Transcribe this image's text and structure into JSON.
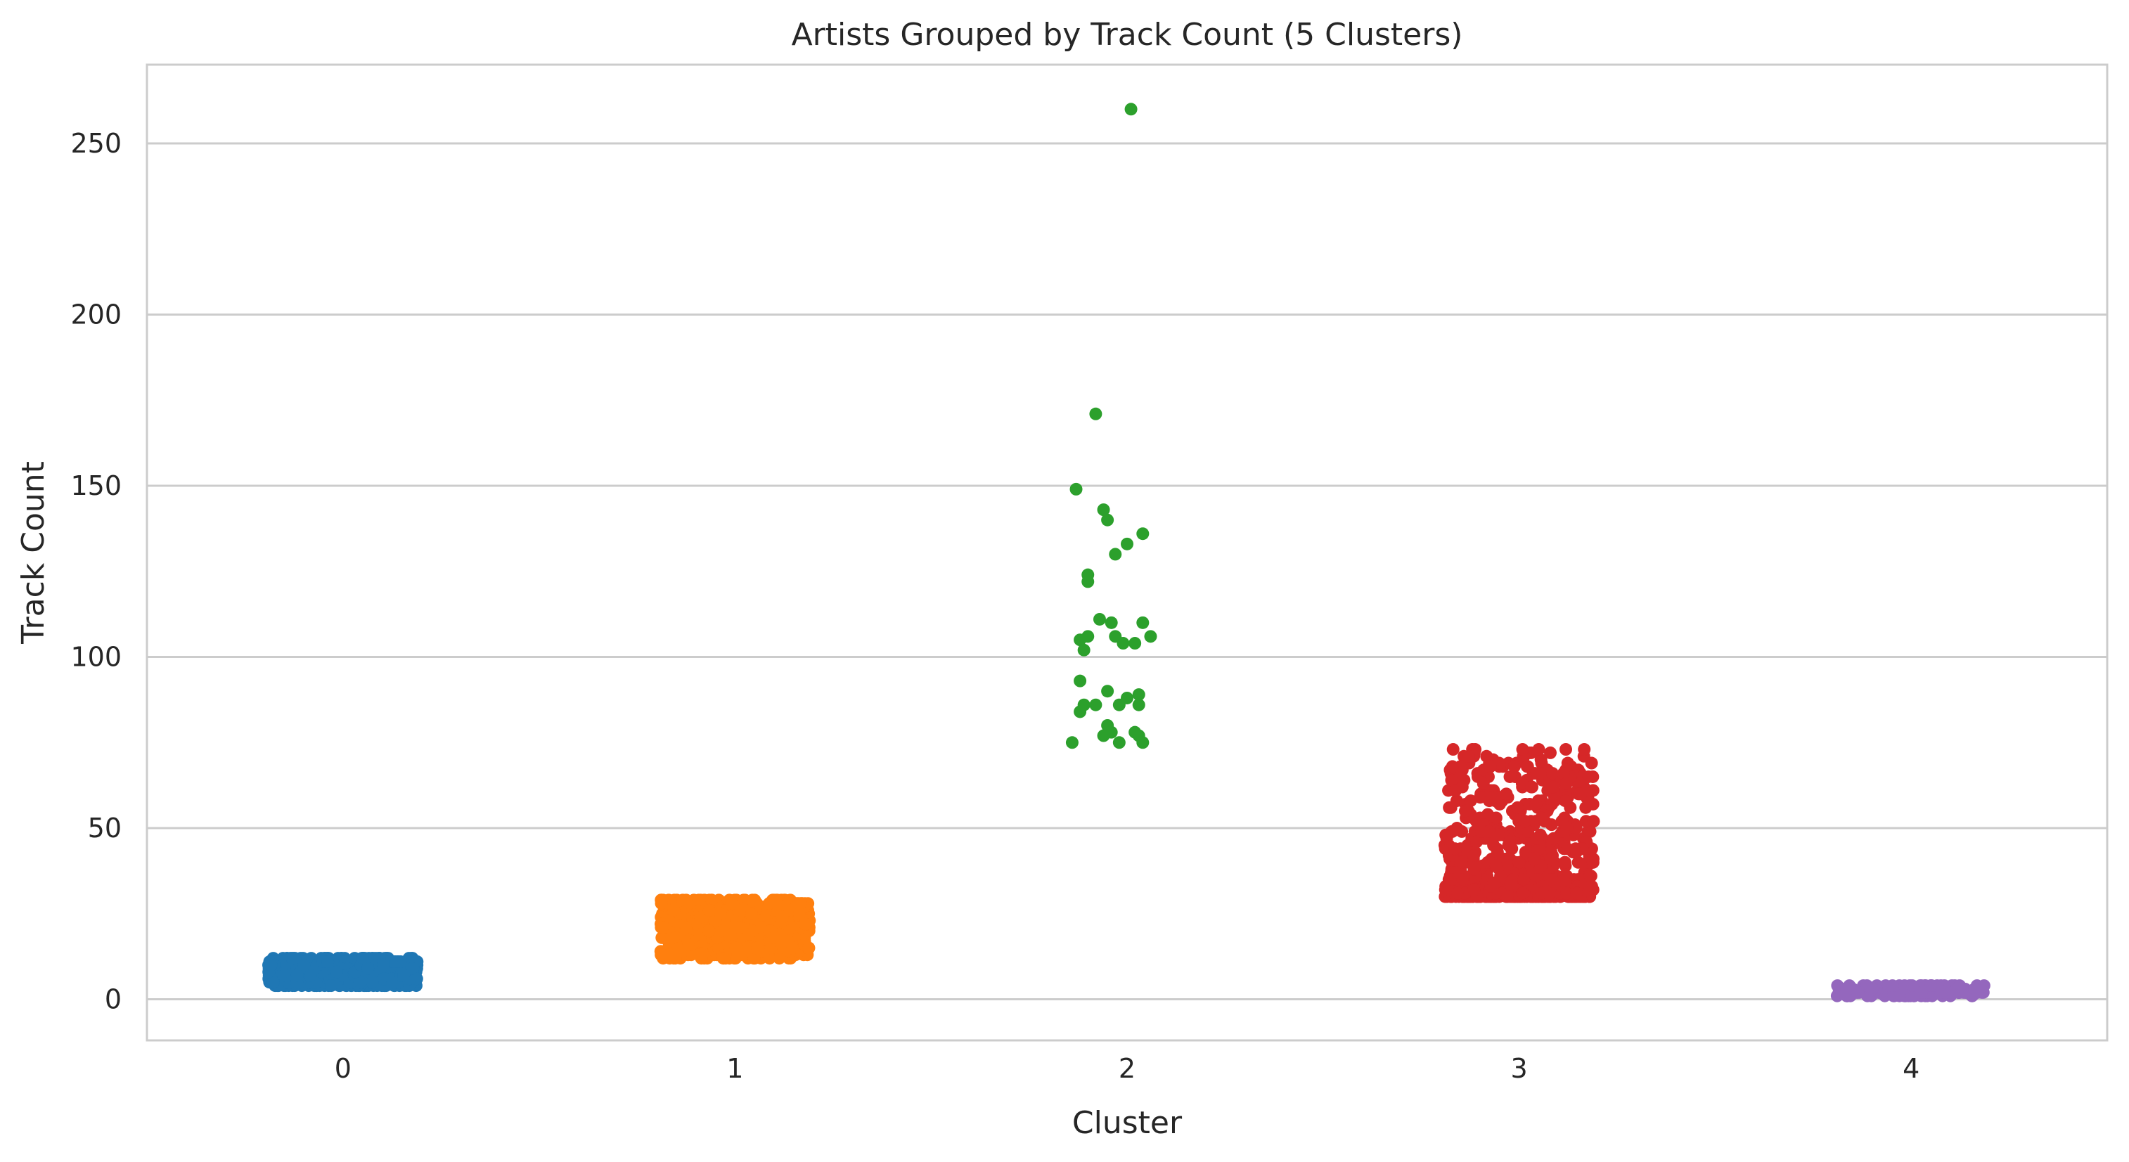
{
  "chart_data": {
    "type": "scatter",
    "subtype": "strip",
    "title": "Artists Grouped by Track Count (5 Clusters)",
    "xlabel": "Cluster",
    "ylabel": "Track Count",
    "categories": [
      "0",
      "1",
      "2",
      "3",
      "4"
    ],
    "ylim": [
      -12,
      273
    ],
    "yticks": [
      0,
      50,
      100,
      150,
      200,
      250
    ],
    "grid": "horizontal",
    "legend": "none",
    "series": [
      {
        "cluster": "0",
        "color": "#1f77b4",
        "range": [
          4,
          12
        ],
        "count": 700,
        "points": []
      },
      {
        "cluster": "1",
        "color": "#ff7f0e",
        "range": [
          12,
          29
        ],
        "count": 800,
        "points": []
      },
      {
        "cluster": "2",
        "color": "#2ca02c",
        "range": [
          75,
          260
        ],
        "count": 40,
        "points": [
          {
            "x": 0.01,
            "y": 260
          },
          {
            "x": -0.08,
            "y": 171
          },
          {
            "x": -0.13,
            "y": 149
          },
          {
            "x": -0.06,
            "y": 143
          },
          {
            "x": -0.05,
            "y": 140
          },
          {
            "x": 0.04,
            "y": 136
          },
          {
            "x": 0.0,
            "y": 133
          },
          {
            "x": -0.03,
            "y": 130
          },
          {
            "x": -0.1,
            "y": 124
          },
          {
            "x": -0.1,
            "y": 122
          },
          {
            "x": -0.07,
            "y": 111
          },
          {
            "x": -0.04,
            "y": 110
          },
          {
            "x": 0.04,
            "y": 110
          },
          {
            "x": -0.1,
            "y": 106
          },
          {
            "x": -0.03,
            "y": 106
          },
          {
            "x": 0.06,
            "y": 106
          },
          {
            "x": -0.12,
            "y": 105
          },
          {
            "x": -0.11,
            "y": 102
          },
          {
            "x": -0.01,
            "y": 104
          },
          {
            "x": 0.02,
            "y": 104
          },
          {
            "x": -0.12,
            "y": 93
          },
          {
            "x": -0.05,
            "y": 90
          },
          {
            "x": 0.0,
            "y": 88
          },
          {
            "x": 0.03,
            "y": 89
          },
          {
            "x": -0.11,
            "y": 86
          },
          {
            "x": -0.08,
            "y": 86
          },
          {
            "x": -0.02,
            "y": 86
          },
          {
            "x": 0.03,
            "y": 86
          },
          {
            "x": -0.12,
            "y": 84
          },
          {
            "x": -0.05,
            "y": 80
          },
          {
            "x": -0.04,
            "y": 78
          },
          {
            "x": 0.02,
            "y": 78
          },
          {
            "x": -0.06,
            "y": 77
          },
          {
            "x": 0.03,
            "y": 77
          },
          {
            "x": -0.14,
            "y": 75
          },
          {
            "x": -0.02,
            "y": 75
          },
          {
            "x": 0.04,
            "y": 75
          }
        ]
      },
      {
        "cluster": "3",
        "color": "#d62728",
        "range": [
          30,
          73
        ],
        "count": 650,
        "points": []
      },
      {
        "cluster": "4",
        "color": "#9467bd",
        "range": [
          1,
          4
        ],
        "count": 150,
        "points": []
      }
    ]
  }
}
